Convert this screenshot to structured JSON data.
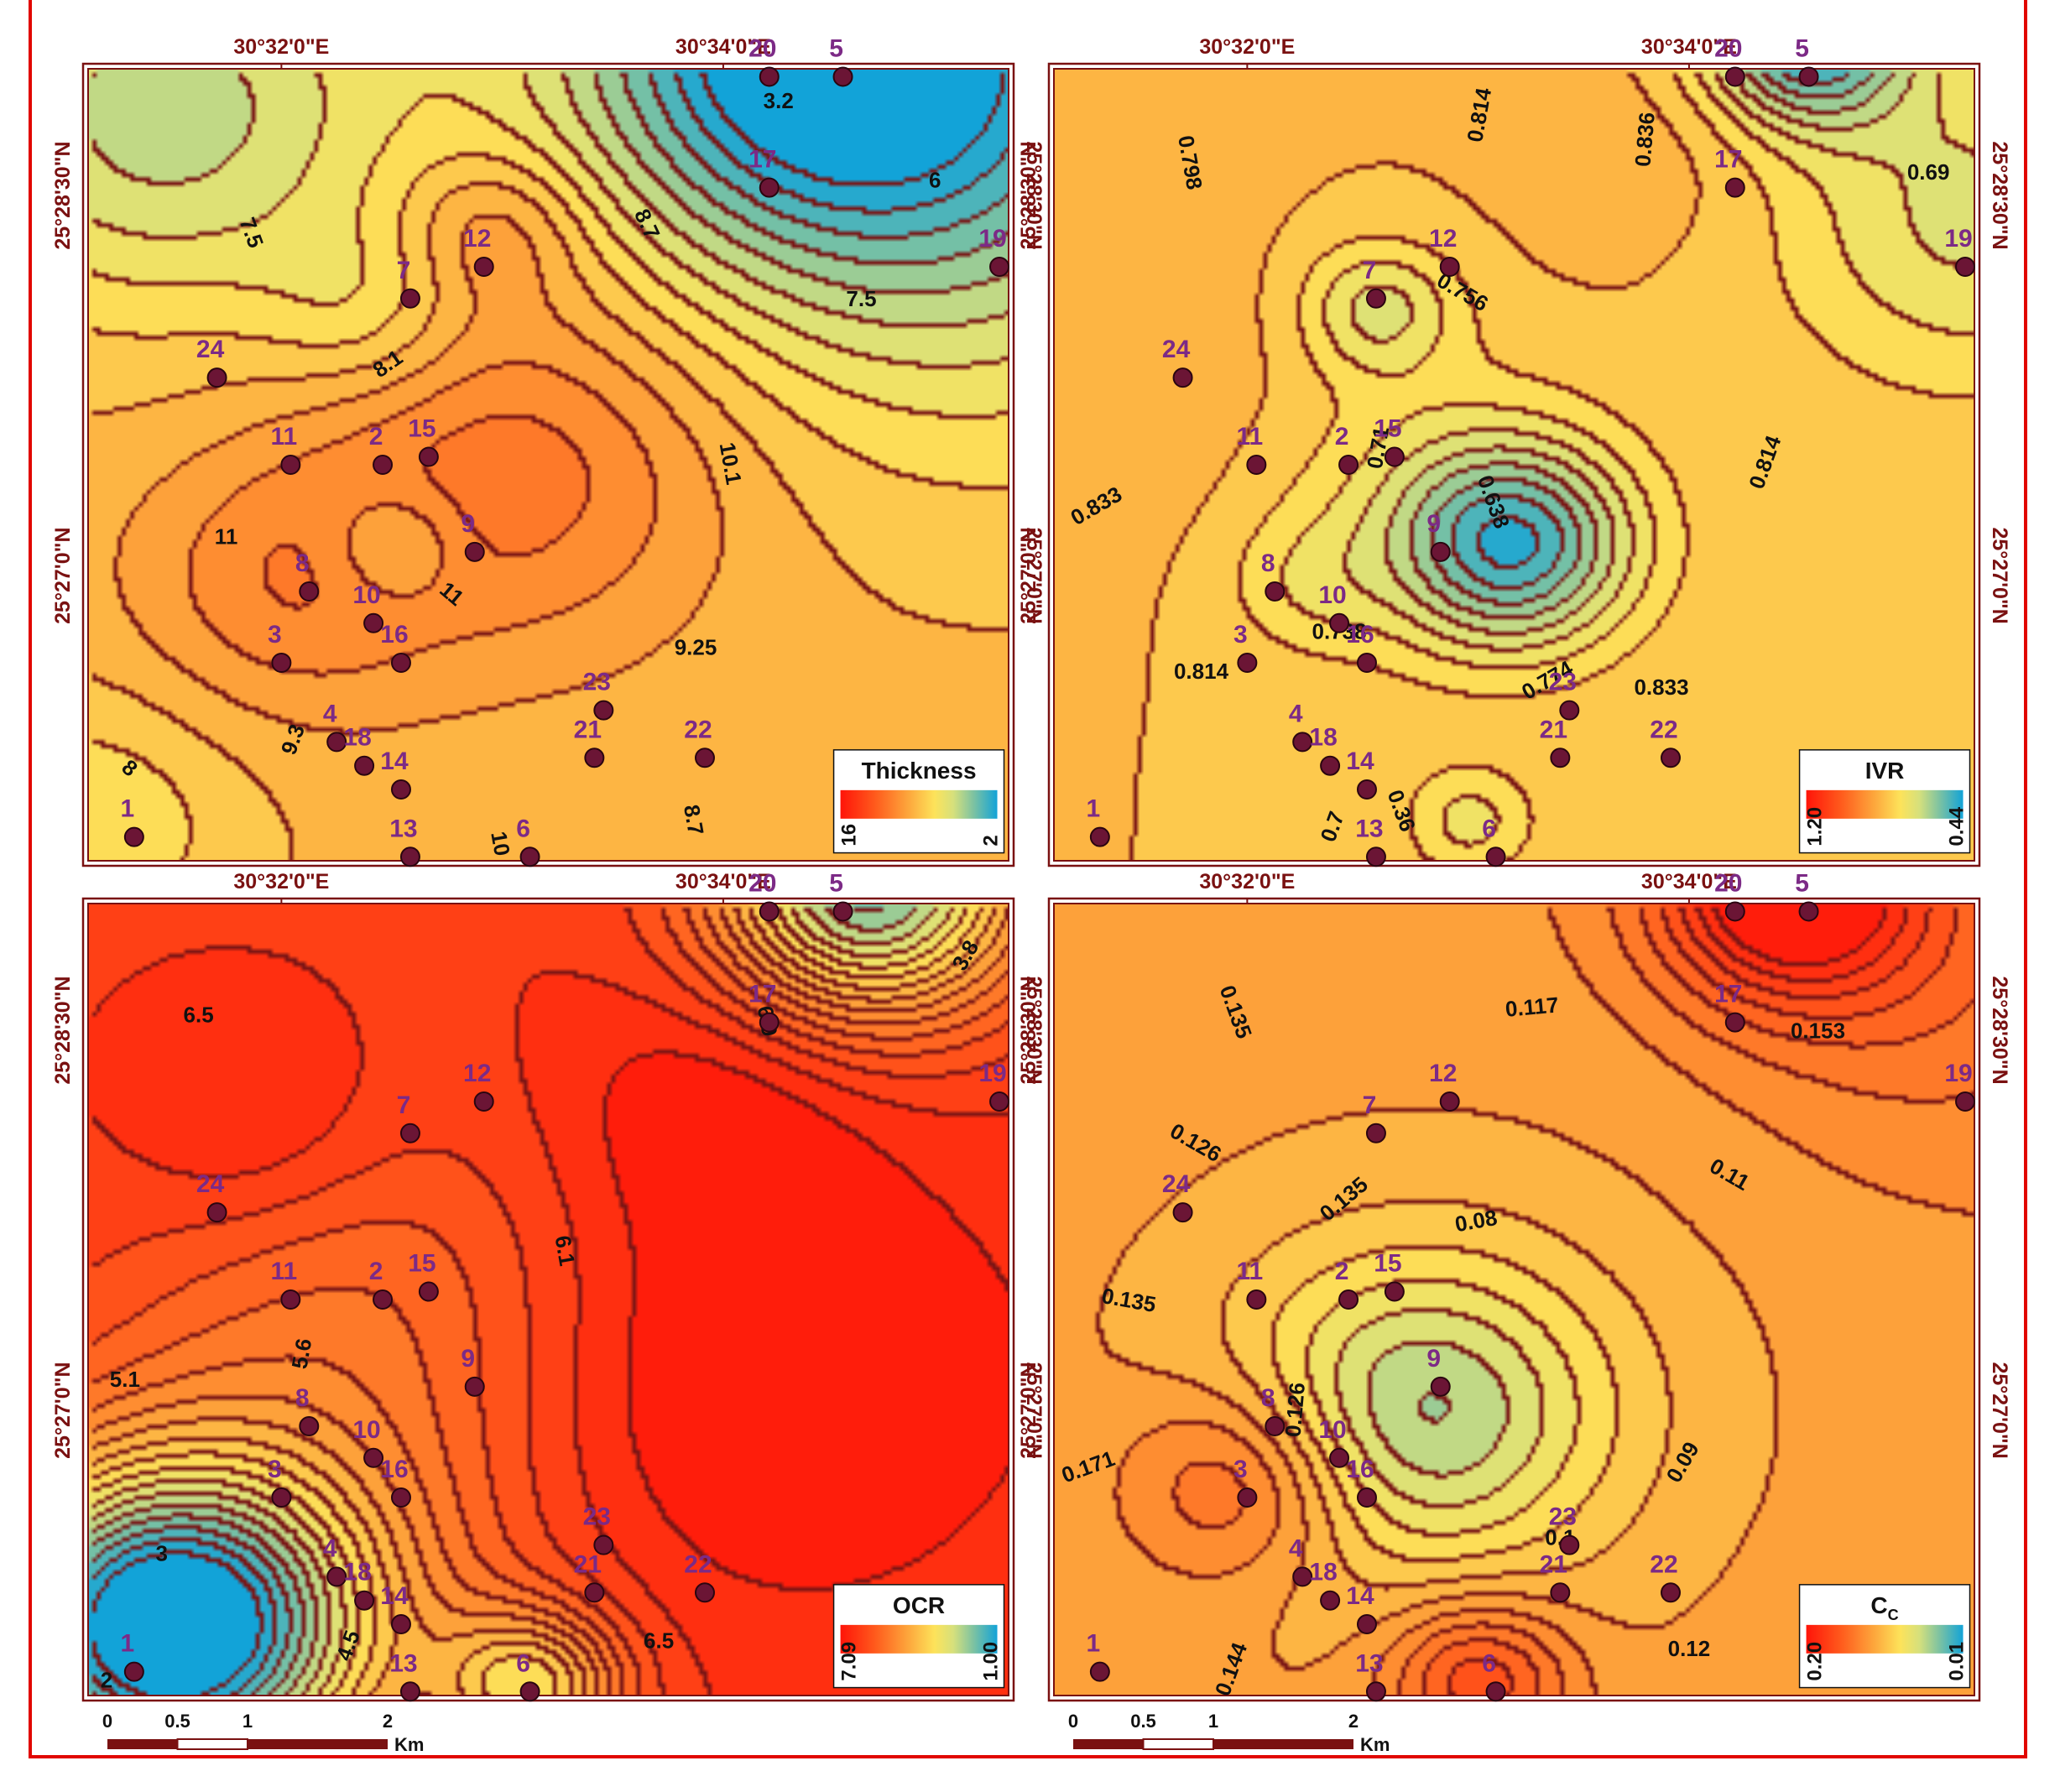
{
  "coordinates": {
    "lon_left": "30°32'0\"E",
    "lon_right": "30°34'0\"E",
    "lat_top": "25°28'30\"N",
    "lat_bottom": "25°27'0\"N"
  },
  "scale_bar": {
    "ticks": [
      "0",
      "0.5",
      "1",
      "2"
    ],
    "unit": "Km"
  },
  "colors": {
    "frame": "#e10600",
    "contour": "#7a1515",
    "point": "#6b1535",
    "point_label": "#7c2a86",
    "ramp_high": "#ff1a0a",
    "ramp_mid": "#fff04a",
    "ramp_low": "#1aa6d2"
  },
  "panels": [
    {
      "id": "thickness",
      "legend": {
        "title": "Thickness",
        "max": "16",
        "min": "2"
      },
      "contour_labels": [
        "7.5",
        "8.1",
        "8.7",
        "3.2",
        "6",
        "7.5",
        "10.1",
        "11",
        "11",
        "9.25",
        "9.3",
        "8",
        "10",
        "8.7"
      ]
    },
    {
      "id": "ivr",
      "legend": {
        "title": "IVR",
        "max": "1.20",
        "min": "0.44"
      },
      "contour_labels": [
        "0.798",
        "0.814",
        "0.836",
        "0.69",
        "0.756",
        "0.71",
        "0.638",
        "0.814",
        "0.833",
        "0.738",
        "0.814",
        "0.774",
        "0.833",
        "0.7",
        "0.36"
      ]
    },
    {
      "id": "ocr",
      "legend": {
        "title": "OCR",
        "max": "7.09",
        "min": "1.00"
      },
      "contour_labels": [
        "6.5",
        "3.8",
        "6.9",
        "6.1",
        "5.6",
        "5.1",
        "3",
        "4.5",
        "2",
        "6.5",
        "7"
      ]
    },
    {
      "id": "cc",
      "legend": {
        "title": "C",
        "title_sub": "C",
        "max": "0.20",
        "min": "0.01"
      },
      "contour_labels": [
        "0.135",
        "0.117",
        "0.153",
        "0.126",
        "0.135",
        "0.11",
        "0.08",
        "0.135",
        "0.126",
        "0.171",
        "0.09",
        "0.1",
        "0.12",
        "0.144"
      ]
    }
  ],
  "points": [
    "1",
    "2",
    "3",
    "4",
    "5",
    "6",
    "7",
    "8",
    "9",
    "10",
    "11",
    "12",
    "13",
    "14",
    "15",
    "16",
    "17",
    "18",
    "19",
    "20",
    "21",
    "22",
    "23",
    "24"
  ],
  "fields": {
    "thickness": {
      "base": 9.25,
      "min": 2,
      "max": 16,
      "centers": [
        [
          0.8,
          -0.06,
          -8.0,
          0.2
        ],
        [
          0.47,
          0.5,
          2.6,
          0.16
        ],
        [
          0.44,
          0.2,
          1.8,
          0.07
        ],
        [
          0.21,
          0.65,
          1.8,
          0.12
        ],
        [
          0.33,
          0.6,
          -1.8,
          0.05
        ],
        [
          0.08,
          0.05,
          -3.8,
          0.18
        ],
        [
          0.98,
          0.15,
          -3.0,
          0.25
        ],
        [
          0.3,
          0.3,
          -1.5,
          0.08
        ],
        [
          0.0,
          0.95,
          -1.6,
          0.12
        ]
      ]
    },
    "ivr": {
      "base": 0.82,
      "min": 0.44,
      "max": 1.2,
      "centers": [
        [
          0.5,
          0.6,
          -0.3,
          0.09
        ],
        [
          0.35,
          0.3,
          -0.14,
          0.06
        ],
        [
          0.82,
          -0.05,
          -0.36,
          0.08
        ],
        [
          0.27,
          0.65,
          -0.06,
          0.06
        ],
        [
          0.4,
          0.55,
          -0.08,
          0.13
        ],
        [
          0.65,
          0.1,
          0.03,
          0.1
        ],
        [
          0.1,
          0.4,
          0.03,
          0.15
        ],
        [
          0.45,
          0.95,
          -0.1,
          0.05
        ],
        [
          1.0,
          0.18,
          -0.14,
          0.15
        ]
      ]
    },
    "ocr": {
      "base": 6.4,
      "min": 1.0,
      "max": 7.09,
      "centers": [
        [
          0.08,
          0.92,
          -5.6,
          0.15
        ],
        [
          0.85,
          -0.03,
          -4.6,
          0.12
        ],
        [
          0.48,
          0.99,
          -2.6,
          0.07
        ],
        [
          0.3,
          0.5,
          -0.9,
          0.18
        ],
        [
          0.18,
          0.28,
          0.6,
          0.1
        ],
        [
          0.75,
          0.6,
          0.9,
          0.2
        ],
        [
          0.68,
          0.25,
          0.6,
          0.12
        ],
        [
          0.2,
          0.85,
          -1.0,
          0.2
        ]
      ]
    },
    "cc": {
      "base": 0.125,
      "min": 0.01,
      "max": 0.2,
      "centers": [
        [
          0.4,
          0.64,
          -0.055,
          0.13
        ],
        [
          0.4,
          0.64,
          -0.02,
          0.3
        ],
        [
          0.8,
          -0.03,
          0.09,
          0.1
        ],
        [
          0.2,
          0.73,
          0.04,
          0.09
        ],
        [
          0.46,
          0.98,
          0.05,
          0.07
        ],
        [
          0.13,
          0.38,
          0.0,
          0.08
        ],
        [
          0.95,
          0.1,
          0.02,
          0.15
        ]
      ]
    }
  }
}
